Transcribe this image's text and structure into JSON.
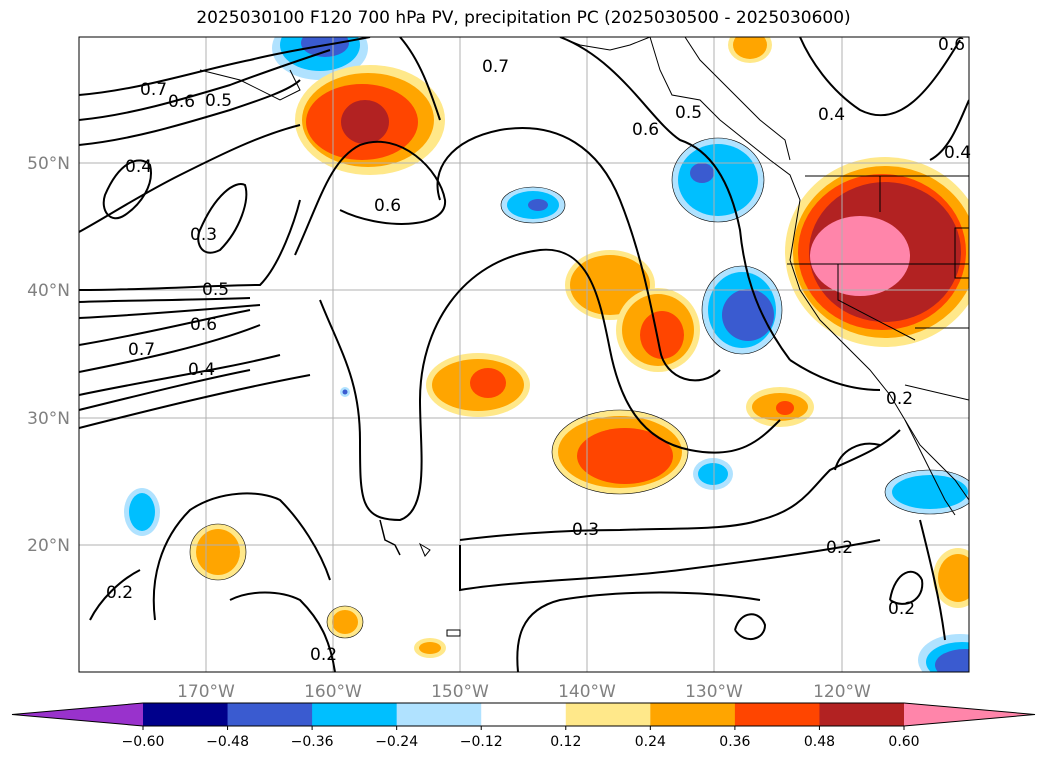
{
  "title": "2025030100 F120 700 hPa PV, precipitation PC (2025030500 - 2025030600)",
  "lat_labels": [
    "50°N",
    "40°N",
    "30°N",
    "20°N"
  ],
  "lon_labels": [
    "170°W",
    "160°W",
    "150°W",
    "140°W",
    "130°W",
    "120°W"
  ],
  "contour_labels": [
    "0.7",
    "0.6",
    "0.5",
    "0.4",
    "0.3",
    "0.5",
    "0.6",
    "0.7",
    "0.4",
    "0.7",
    "0.6",
    "0.6",
    "0.5",
    "0.4",
    "0.4",
    "0.3",
    "0.2",
    "0.2",
    "0.2",
    "0.2",
    "0.2",
    "0.6"
  ],
  "colorbar": {
    "ticks": [
      "−0.60",
      "−0.48",
      "−0.36",
      "−0.24",
      "−0.12",
      "0.12",
      "0.24",
      "0.36",
      "0.48",
      "0.60"
    ],
    "colors": [
      "#9932cc",
      "#00008b",
      "#3a5bd0",
      "#00bfff",
      "#b0e2ff",
      "#ffffff",
      "#ffe88a",
      "#ffa500",
      "#ff4500",
      "#b22222",
      "#ff85aa"
    ]
  },
  "fill_colors": {
    "neg_light": "#b0e2ff",
    "neg_med": "#00bfff",
    "neg_dark": "#3a5bd0",
    "pos_light": "#ffe88a",
    "pos_med": "#ffa500",
    "pos_strong": "#ff4500",
    "pos_dark": "#b22222",
    "pos_max": "#ff85aa"
  }
}
